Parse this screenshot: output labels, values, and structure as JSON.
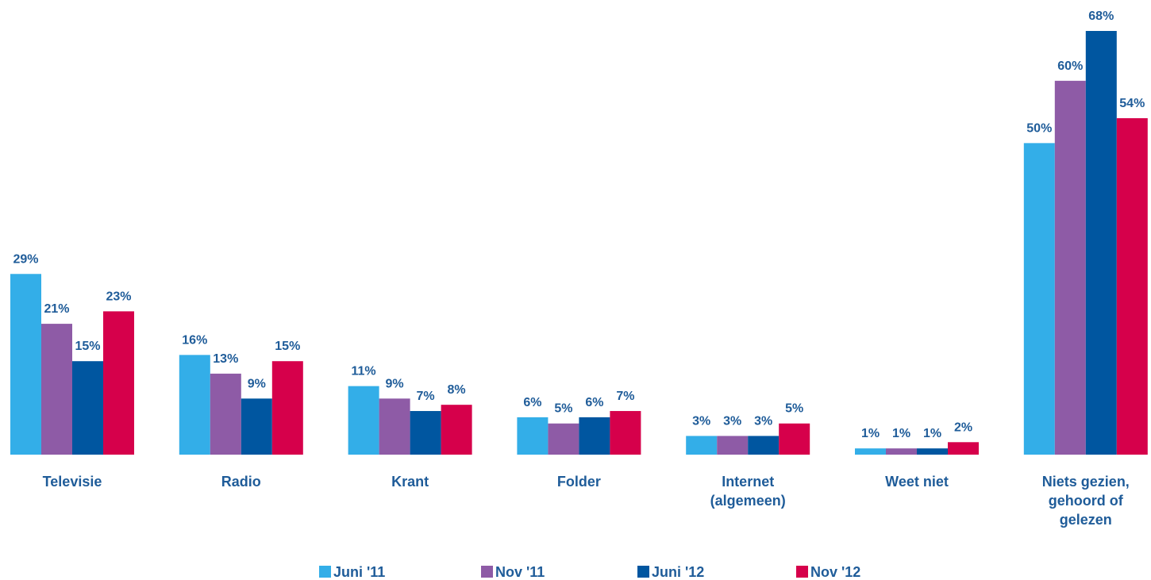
{
  "chart_data": {
    "type": "bar",
    "categories": [
      "Televisie",
      "Radio",
      "Krant",
      "Folder",
      "Internet\n(algemeen)",
      "Weet niet",
      "Niets gezien,\ngehoord of\ngelezen"
    ],
    "series": [
      {
        "name": "Juni '11",
        "color": "#33aee8",
        "values": [
          29,
          16,
          11,
          6,
          3,
          1,
          50
        ],
        "value_labels": [
          "29%",
          "16%",
          "11%",
          "6%",
          "3%",
          "1%",
          "50%"
        ]
      },
      {
        "name": "Nov '11",
        "color": "#8e5ba6",
        "values": [
          21,
          13,
          9,
          5,
          3,
          1,
          60
        ],
        "value_labels": [
          "21%",
          "13%",
          "9%",
          "5%",
          "3%",
          "1%",
          "60%"
        ]
      },
      {
        "name": "Juni '12",
        "color": "#0056a0",
        "values": [
          15,
          9,
          7,
          6,
          3,
          1,
          68
        ],
        "value_labels": [
          "15%",
          "9%",
          "7%",
          "6%",
          "3%",
          "1%",
          "68%"
        ]
      },
      {
        "name": "Nov '12",
        "color": "#d6004b",
        "values": [
          23,
          15,
          8,
          7,
          5,
          2,
          54
        ],
        "value_labels": [
          "23%",
          "15%",
          "8%",
          "7%",
          "5%",
          "2%",
          "54%"
        ]
      }
    ],
    "legend": "bottom"
  }
}
